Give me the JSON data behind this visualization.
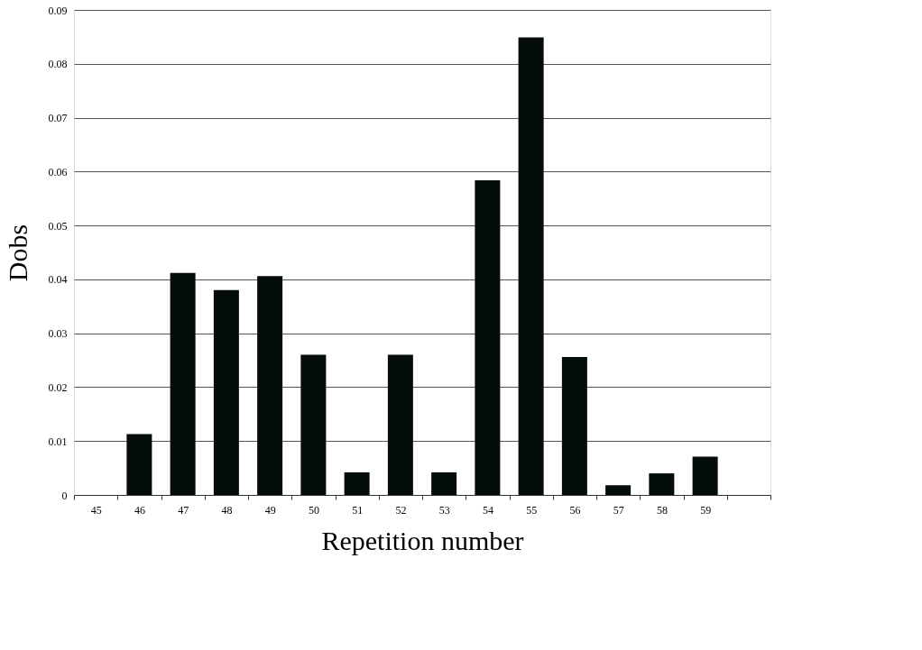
{
  "chart_data": {
    "type": "bar",
    "xlabel": "Repetition number",
    "ylabel": "Dobs",
    "categories": [
      "45",
      "46",
      "47",
      "48",
      "49",
      "50",
      "51",
      "52",
      "53",
      "54",
      "55",
      "56",
      "57",
      "58",
      "59",
      null
    ],
    "values": [
      0,
      0.0113,
      0.0412,
      0.038,
      0.0406,
      0.026,
      0.0042,
      0.026,
      0.0042,
      0.0584,
      0.0849,
      0.0256,
      0.0018,
      0.004,
      0.0071,
      null
    ],
    "color": "#040c0c",
    "ylim": [
      0,
      0.09
    ],
    "yticks": [
      0,
      0.01,
      0.02,
      0.03,
      0.04,
      0.05,
      0.06,
      0.07,
      0.08,
      0.09
    ],
    "grid": "y"
  }
}
